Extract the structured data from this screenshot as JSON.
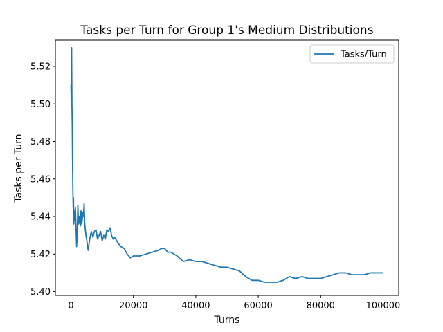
{
  "chart_data": {
    "type": "line",
    "title": "Tasks per Turn for Group 1's Medium Distributions",
    "xlabel": "Turns",
    "ylabel": "Tasks per Turn",
    "xlim": [
      -5000,
      105000
    ],
    "ylim": [
      5.398,
      5.534
    ],
    "xticks": [
      0,
      20000,
      40000,
      60000,
      80000,
      100000
    ],
    "xtick_labels": [
      "0",
      "20000",
      "40000",
      "60000",
      "80000",
      "100000"
    ],
    "yticks": [
      5.4,
      5.42,
      5.44,
      5.46,
      5.48,
      5.5,
      5.52
    ],
    "ytick_labels": [
      "5.40",
      "5.42",
      "5.44",
      "5.46",
      "5.48",
      "5.50",
      "5.52"
    ],
    "grid": false,
    "legend_position": "upper right",
    "series": [
      {
        "name": "Tasks/Turn",
        "color": "#1f77b4",
        "x": [
          0,
          100,
          200,
          300,
          400,
          500,
          600,
          700,
          800,
          900,
          1000,
          1200,
          1400,
          1600,
          1800,
          2000,
          2200,
          2400,
          2600,
          2800,
          3000,
          3200,
          3400,
          3600,
          3800,
          4000,
          4200,
          4400,
          4600,
          4800,
          5000,
          5500,
          6000,
          6500,
          7000,
          7500,
          8000,
          8500,
          9000,
          9500,
          10000,
          10500,
          11000,
          11500,
          12000,
          12500,
          13000,
          13500,
          14000,
          15000,
          16000,
          17000,
          18000,
          19000,
          20000,
          22000,
          24000,
          26000,
          28000,
          29000,
          30000,
          31000,
          32000,
          34000,
          36000,
          38000,
          40000,
          42000,
          44000,
          46000,
          48000,
          50000,
          52000,
          54000,
          56000,
          58000,
          60000,
          62000,
          64000,
          66000,
          68000,
          70000,
          72000,
          74000,
          76000,
          78000,
          80000,
          82000,
          84000,
          86000,
          88000,
          90000,
          92000,
          94000,
          96000,
          98000,
          100000
        ],
        "y": [
          5.51,
          5.5,
          5.53,
          5.5,
          5.49,
          5.47,
          5.455,
          5.445,
          5.45,
          5.436,
          5.443,
          5.438,
          5.445,
          5.435,
          5.424,
          5.43,
          5.446,
          5.436,
          5.44,
          5.437,
          5.435,
          5.443,
          5.436,
          5.438,
          5.442,
          5.44,
          5.447,
          5.436,
          5.433,
          5.43,
          5.428,
          5.422,
          5.428,
          5.432,
          5.429,
          5.432,
          5.433,
          5.428,
          5.43,
          5.432,
          5.427,
          5.43,
          5.428,
          5.433,
          5.432,
          5.434,
          5.43,
          5.428,
          5.429,
          5.426,
          5.424,
          5.423,
          5.42,
          5.418,
          5.419,
          5.419,
          5.42,
          5.421,
          5.422,
          5.423,
          5.423,
          5.421,
          5.421,
          5.419,
          5.416,
          5.417,
          5.416,
          5.416,
          5.415,
          5.414,
          5.413,
          5.413,
          5.412,
          5.411,
          5.408,
          5.406,
          5.406,
          5.405,
          5.405,
          5.405,
          5.406,
          5.408,
          5.407,
          5.408,
          5.407,
          5.407,
          5.407,
          5.408,
          5.409,
          5.41,
          5.41,
          5.409,
          5.409,
          5.409,
          5.41,
          5.41,
          5.41
        ]
      }
    ]
  }
}
